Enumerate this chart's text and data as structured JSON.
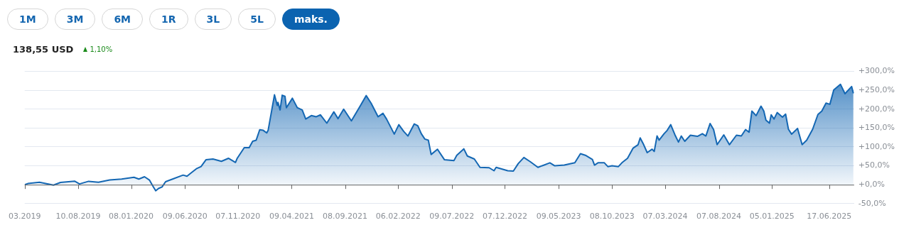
{
  "chart_data": {
    "type": "area",
    "title": "138,55 USD",
    "subtitle": "1,10%",
    "annotations": [
      "1M",
      "3M",
      "6M",
      "1R",
      "3L",
      "5L",
      "maks."
    ],
    "x": [
      "2019-03-11",
      "2019-03-20",
      "2019-04-22",
      "2019-06-01",
      "2019-06-21",
      "2019-07-31",
      "2019-08-14",
      "2019-09-09",
      "2019-10-07",
      "2019-11-08",
      "2019-12-12",
      "2020-01-16",
      "2020-01-30",
      "2020-02-15",
      "2020-02-29",
      "2020-03-10",
      "2020-03-18",
      "2020-03-26",
      "2020-04-05",
      "2020-04-15",
      "2020-05-05",
      "2020-06-04",
      "2020-06-15",
      "2020-06-25",
      "2020-07-13",
      "2020-07-25",
      "2020-08-08",
      "2020-08-28",
      "2020-09-21",
      "2020-10-11",
      "2020-10-31",
      "2020-11-05",
      "2020-11-25",
      "2020-12-09",
      "2020-12-19",
      "2020-12-29",
      "2021-01-08",
      "2021-01-18",
      "2021-01-28",
      "2021-02-01",
      "2021-02-19",
      "2021-02-27",
      "2021-03-01",
      "2021-03-07",
      "2021-03-13",
      "2021-03-21",
      "2021-03-25",
      "2021-04-11",
      "2021-04-25",
      "2021-05-09",
      "2021-05-19",
      "2021-06-04",
      "2021-06-18",
      "2021-06-30",
      "2021-07-18",
      "2021-08-07",
      "2021-08-19",
      "2021-09-04",
      "2021-09-26",
      "2021-10-22",
      "2021-11-07",
      "2021-11-21",
      "2021-12-11",
      "2021-12-25",
      "2022-01-04",
      "2022-01-26",
      "2022-02-08",
      "2022-02-22",
      "2022-03-06",
      "2022-03-24",
      "2022-04-03",
      "2022-04-13",
      "2022-04-23",
      "2022-05-03",
      "2022-05-11",
      "2022-05-29",
      "2022-06-18",
      "2022-07-15",
      "2022-07-23",
      "2022-08-12",
      "2022-08-22",
      "2022-09-11",
      "2022-09-27",
      "2022-10-23",
      "2022-11-06",
      "2022-11-12",
      "2022-12-15",
      "2022-12-31",
      "2023-01-14",
      "2023-01-30",
      "2023-02-17",
      "2023-03-11",
      "2023-04-14",
      "2023-04-28",
      "2023-05-25",
      "2023-06-24",
      "2023-07-10",
      "2023-07-24",
      "2023-08-13",
      "2023-08-19",
      "2023-08-29",
      "2023-09-16",
      "2023-09-26",
      "2023-10-08",
      "2023-10-26",
      "2023-11-05",
      "2023-11-21",
      "2023-12-07",
      "2023-12-21",
      "2023-12-27",
      "2024-01-06",
      "2024-01-16",
      "2024-01-30",
      "2024-02-05",
      "2024-02-13",
      "2024-02-19",
      "2024-03-04",
      "2024-03-13",
      "2024-03-23",
      "2024-04-04",
      "2024-04-14",
      "2024-04-22",
      "2024-05-02",
      "2024-05-18",
      "2024-06-07",
      "2024-06-21",
      "2024-07-01",
      "2024-07-13",
      "2024-07-23",
      "2024-08-02",
      "2024-08-21",
      "2024-09-06",
      "2024-09-26",
      "2024-10-10",
      "2024-10-22",
      "2024-11-01",
      "2024-11-09",
      "2024-11-21",
      "2024-12-05",
      "2024-12-13",
      "2024-12-19",
      "2024-12-29",
      "2025-01-03",
      "2025-01-11",
      "2025-01-20",
      "2025-02-04",
      "2025-02-13",
      "2025-02-21",
      "2025-03-02",
      "2025-03-19",
      "2025-04-01",
      "2025-04-14",
      "2025-05-01",
      "2025-05-16",
      "2025-05-27",
      "2025-06-08",
      "2025-06-19",
      "2025-06-30",
      "2025-07-19",
      "2025-08-01",
      "2025-08-20",
      "2025-08-25"
    ],
    "values": [
      0,
      3,
      6.5,
      -1,
      6,
      9.5,
      2,
      9,
      6.5,
      12.5,
      15,
      19.6,
      15,
      21,
      12.5,
      -4,
      -16,
      -10,
      -6,
      8,
      15,
      25.5,
      22.6,
      30,
      43,
      48,
      66,
      68,
      62,
      70,
      59,
      70,
      98,
      98,
      115,
      118,
      145.5,
      144,
      137,
      144,
      238,
      210,
      218,
      198,
      237,
      234,
      204,
      229,
      204,
      198,
      174,
      183,
      180,
      185,
      163,
      193,
      175,
      200,
      169,
      210,
      236,
      216,
      180,
      189,
      174,
      134,
      159,
      141,
      129,
      161,
      156,
      135,
      121,
      118,
      80,
      94,
      66,
      64,
      78,
      95,
      76,
      68,
      46,
      45,
      37,
      46,
      37,
      36,
      56,
      72,
      61,
      46,
      58,
      50,
      52,
      58,
      82,
      78,
      67,
      52,
      58,
      58,
      48,
      50,
      48,
      58,
      70,
      97,
      106,
      124,
      106,
      85,
      94,
      88,
      129,
      118,
      135,
      144,
      159,
      132,
      113,
      129,
      115,
      131,
      128,
      135,
      129,
      162,
      146,
      106,
      132,
      106,
      131,
      129,
      146,
      139,
      195,
      183,
      208,
      195,
      171,
      163,
      185,
      174,
      191,
      179,
      187,
      147,
      134,
      149,
      106,
      118,
      147,
      186,
      195,
      216,
      213,
      251,
      266,
      241,
      260,
      242
    ],
    "color": "#1467b3",
    "xlim": [
      "2019-03-11",
      "2025-08-27"
    ],
    "xticks": [
      {
        "value": "2019-03-11",
        "label": "03.2019"
      },
      {
        "value": "2019-08-10",
        "label": "10.08.2019"
      },
      {
        "value": "2020-01-08",
        "label": "08.01.2020"
      },
      {
        "value": "2020-06-09",
        "label": "09.06.2020"
      },
      {
        "value": "2020-11-07",
        "label": "07.11.2020"
      },
      {
        "value": "2021-04-09",
        "label": "09.04.2021"
      },
      {
        "value": "2021-09-08",
        "label": "08.09.2021"
      },
      {
        "value": "2022-02-06",
        "label": "06.02.2022"
      },
      {
        "value": "2022-07-09",
        "label": "09.07.2022"
      },
      {
        "value": "2022-12-07",
        "label": "07.12.2022"
      },
      {
        "value": "2023-05-09",
        "label": "09.05.2023"
      },
      {
        "value": "2023-10-08",
        "label": "08.10.2023"
      },
      {
        "value": "2024-03-07",
        "label": "07.03.2024"
      },
      {
        "value": "2024-08-07",
        "label": "07.08.2024"
      },
      {
        "value": "2025-01-05",
        "label": "05.01.2025"
      },
      {
        "value": "2025-06-17",
        "label": "17.06.2025"
      }
    ],
    "ylim": [
      -50,
      300
    ],
    "yticks": [
      {
        "value": -50,
        "label": "-50,0%"
      },
      {
        "value": 0,
        "label": "+0,0%"
      },
      {
        "value": 50,
        "label": "+50,0%"
      },
      {
        "value": 100,
        "label": "+100,0%"
      },
      {
        "value": 150,
        "label": "+150,0%"
      },
      {
        "value": 200,
        "label": "+200,0%"
      },
      {
        "value": 250,
        "label": "+250,0%"
      },
      {
        "value": 300,
        "label": "+300,0%"
      }
    ],
    "grid": "y",
    "legend": false
  }
}
